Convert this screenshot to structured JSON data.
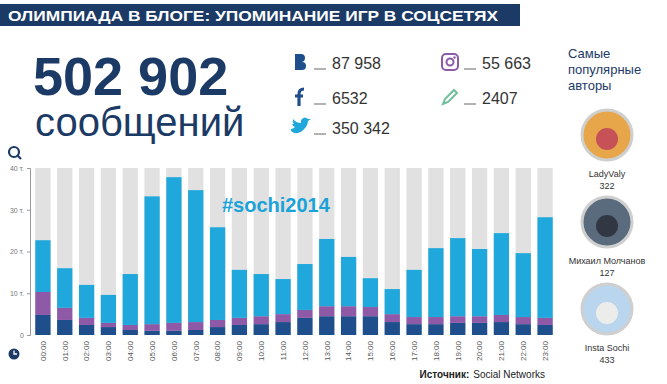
{
  "title": "ОЛИМПИАДА В БЛОГЕ: УПОМИНАНИЕ ИГР В СОЦСЕТЯХ",
  "total": "502 902",
  "total_caption": "сообщений",
  "networks": [
    "87 958",
    "6532",
    "350 342",
    "55 663",
    "2407"
  ],
  "authors": {
    "title": "Самые популярные авторы",
    "items": [
      {
        "name": "LadyValy",
        "value": 322
      },
      {
        "name": "Михаил Молчанов",
        "value": 127
      },
      {
        "name": "Insta Sochi",
        "value": 433
      }
    ]
  },
  "source": {
    "label": "Источник:",
    "text": "Social Networks"
  },
  "chart_data": {
    "type": "bar",
    "stacked": true,
    "grid": false,
    "annotation": "#sochi2014",
    "categories": [
      "00:00",
      "01:00",
      "02:00",
      "03:00",
      "04:00",
      "05:00",
      "06:00",
      "07:00",
      "08:00",
      "09:00",
      "10:00",
      "11:00",
      "12:00",
      "13:00",
      "14:00",
      "15:00",
      "16:00",
      "17:00",
      "18:00",
      "19:00",
      "20:00",
      "21:00",
      "22:00",
      "23:00"
    ],
    "series": [
      {
        "color": "#1f4e8c",
        "values": [
          4.8,
          3.6,
          2.4,
          1.9,
          1.2,
          1.0,
          1.0,
          1.2,
          1.9,
          2.4,
          2.6,
          3.1,
          4.1,
          4.5,
          4.5,
          4.5,
          3.1,
          2.6,
          2.6,
          2.9,
          2.9,
          3.1,
          2.6,
          2.4
        ]
      },
      {
        "color": "#8e5aa8",
        "values": [
          5.5,
          2.9,
          1.7,
          1.0,
          1.2,
          1.6,
          1.9,
          1.9,
          1.7,
          1.7,
          1.9,
          1.9,
          1.9,
          2.4,
          2.4,
          2.2,
          1.9,
          1.7,
          1.7,
          1.6,
          1.6,
          1.7,
          1.7,
          1.7
        ]
      },
      {
        "color": "#20a8dc",
        "values": [
          12.4,
          9.5,
          7.9,
          6.7,
          12.2,
          30.6,
          34.9,
          31.6,
          22.2,
          11.5,
          10.1,
          8.4,
          11.0,
          16.1,
          11.8,
          6.9,
          6.0,
          11.3,
          16.5,
          18.7,
          16.1,
          19.6,
          15.3,
          24.1
        ]
      }
    ],
    "ylim": [
      0,
      40
    ],
    "yticks": [
      0,
      {
        "value": 10,
        "label": "10 т."
      },
      {
        "value": 20,
        "label": "20 т."
      },
      {
        "value": 30,
        "label": "30 т."
      },
      {
        "value": 40,
        "label": "40 т."
      }
    ]
  }
}
